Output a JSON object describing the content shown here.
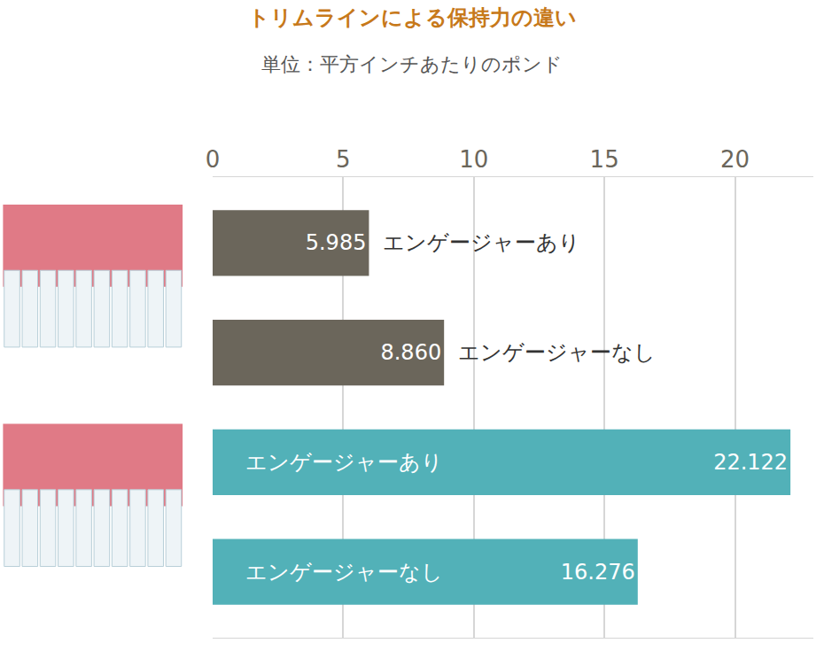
{
  "chart_data": {
    "type": "bar",
    "orientation": "horizontal",
    "title": "トリムラインによる保持力の違い",
    "subtitle": "単位：平方インチあたりのポンド",
    "categories": [
      "エンゲージャーあり",
      "エンゲージャーなし",
      "エンゲージャーあり",
      "エンゲージャーなし"
    ],
    "values": [
      5.985,
      8.86,
      22.122,
      16.276
    ],
    "value_labels": [
      "5.985",
      "8.860",
      "22.122",
      "16.276"
    ],
    "colors": [
      "#6b665b",
      "#6b665b",
      "#52b1b8",
      "#52b1b8"
    ],
    "xlim": [
      0,
      23
    ],
    "xticks": [
      0,
      5,
      10,
      15,
      20
    ],
    "grid": true,
    "data_labels": true,
    "tick_labels": "x"
  }
}
